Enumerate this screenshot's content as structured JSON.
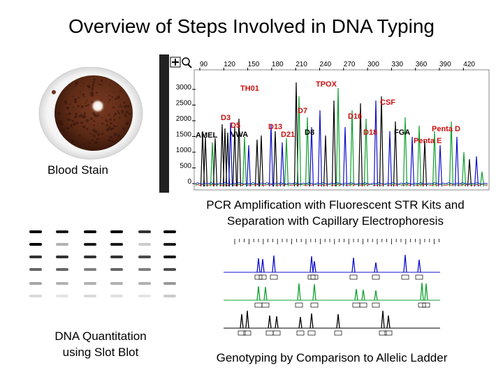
{
  "title": "Overview of Steps Involved in DNA Typing",
  "steps": {
    "blood_stain": "Blood Stain",
    "pcr": "PCR Amplification with Fluorescent STR Kits and Separation with Capillary Electrophoresis",
    "quantitation": "DNA Quantitation using Slot Blot",
    "genotyping": "Genotyping by Comparison to Allelic Ladder"
  },
  "electropherogram": {
    "toolbar_icons": [
      "plus-icon",
      "magnifier-icon"
    ],
    "x_ticks": [
      "90",
      "120",
      "150",
      "180",
      "210",
      "240",
      "270",
      "300",
      "330",
      "360",
      "390",
      "420"
    ],
    "y_ticks": [
      "3000",
      "2500",
      "2000",
      "1500",
      "1000",
      "500",
      "0"
    ],
    "locus_labels": [
      "TPOX",
      "TH01",
      "CSF",
      "D7",
      "D16",
      "D3",
      "D5",
      "D13",
      "AMEL",
      "VWA",
      "D21",
      "D8",
      "D18",
      "FGA",
      "Penta D",
      "Penta E"
    ],
    "colors": {
      "blue": "#1010cc",
      "green": "#10a030",
      "black": "#000000",
      "red": "#cc1010",
      "label": "#cc1010",
      "toolbar": "#000000"
    }
  }
}
